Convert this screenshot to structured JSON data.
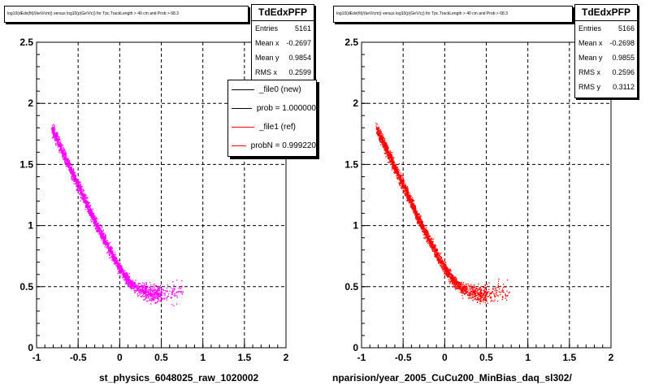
{
  "footer_text": "",
  "chart_data": [
    {
      "type": "scatter",
      "title": "log10(dEdx(fit)/(keV/cm)) versus log10(p(GeV/c)) for Tpc.TrackLength > 40 cm and Prob > 68.3",
      "xlabel": "st_physics_6048025_raw_1020002",
      "ylabel": "",
      "xlim": [
        -1,
        2
      ],
      "ylim": [
        0,
        2.5
      ],
      "xticks": [
        "-1",
        "-0.5",
        "0",
        "0.5",
        "1",
        "1.5",
        "2"
      ],
      "yticks": [
        "0",
        "0.5",
        "1",
        "1.5",
        "2",
        "2.5"
      ],
      "grid": true,
      "color": "#ff00ff",
      "band": {
        "x": [
          -0.82,
          -0.7,
          -0.6,
          -0.5,
          -0.4,
          -0.3,
          -0.2,
          -0.1,
          0.0,
          0.1,
          0.2,
          0.3,
          0.45,
          0.6,
          0.7
        ],
        "y": [
          1.8,
          1.62,
          1.47,
          1.33,
          1.18,
          1.03,
          0.9,
          0.77,
          0.65,
          0.55,
          0.49,
          0.46,
          0.44,
          0.45,
          0.47
        ]
      },
      "stats": {
        "title": "TdEdxPFP",
        "rows": [
          {
            "label": "Entries",
            "value": "5161"
          },
          {
            "label": "Mean x",
            "value": "-0.2697"
          },
          {
            "label": "Mean y",
            "value": "0.9854"
          },
          {
            "label": "RMS x",
            "value": "0.2599"
          }
        ]
      },
      "legend": {
        "placement": "top-right",
        "entries": [
          {
            "label": "_file0 (new)",
            "color": "#000000"
          },
          {
            "label": "prob = 1.000000",
            "color": "#000000"
          },
          {
            "label": "_file1 (ref)",
            "color": "#ff0000"
          },
          {
            "label": "probN = 0.999220",
            "color": "#ff0000"
          }
        ]
      }
    },
    {
      "type": "scatter",
      "title": "log10(dEdx(fit)/(keV/cm)) versus log10(p(GeV/c)) for Tpc.TrackLength > 40 cm and Prob > 68.3",
      "xlabel": "nparision/year_2005_CuCu200_MinBias_daq_sl302/",
      "ylabel": "",
      "xlim": [
        -1,
        2
      ],
      "ylim": [
        0,
        2.5
      ],
      "xticks": [
        "-1",
        "-0.5",
        "0",
        "0.5",
        "1",
        "1.5",
        "2"
      ],
      "yticks": [
        "0",
        "0.5",
        "1",
        "1.5",
        "2",
        "2.5"
      ],
      "grid": true,
      "color": "#ff0000",
      "band": {
        "x": [
          -0.82,
          -0.7,
          -0.6,
          -0.5,
          -0.4,
          -0.3,
          -0.2,
          -0.1,
          0.0,
          0.1,
          0.2,
          0.3,
          0.45,
          0.6,
          0.7
        ],
        "y": [
          1.8,
          1.62,
          1.47,
          1.33,
          1.18,
          1.03,
          0.9,
          0.77,
          0.65,
          0.55,
          0.49,
          0.46,
          0.44,
          0.45,
          0.47
        ]
      },
      "stats": {
        "title": "TdEdxPFP",
        "rows": [
          {
            "label": "Entries",
            "value": "5166"
          },
          {
            "label": "Mean x",
            "value": "-0.2698"
          },
          {
            "label": "Mean y",
            "value": "0.9855"
          },
          {
            "label": "RMS x",
            "value": "0.2596"
          },
          {
            "label": "RMS y",
            "value": "0.3112"
          }
        ]
      }
    }
  ]
}
